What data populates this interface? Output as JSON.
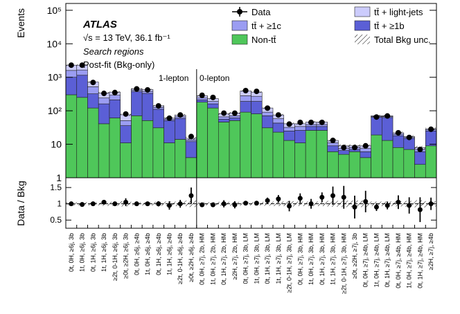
{
  "chart_data": {
    "type": "bar",
    "stacked": true,
    "log_scale": true,
    "ylabel": "Events",
    "ratio_ylabel": "Data / Bkg",
    "annotations": {
      "experiment": "ATLAS",
      "energy": "√s = 13 TeV, 36.1 fb⁻¹",
      "selection": "Search regions",
      "fit": "Post-fit (Bkg-only)",
      "region1": "1-lepton",
      "region2": "0-lepton"
    },
    "categories": [
      "0t, 0H, ≥6j, 3b",
      "1t, 0H, ≥6j, 3b",
      "0t, 1H, ≥6j, 3b",
      "1t, 1H, ≥6j, 3b",
      "≥2t, 0-1H, ≥6j, 3b",
      "≥0t, ≥2H, ≥6j, 3b",
      "0t, 0H, ≥6j, ≥4b",
      "1t, 0H, ≥6j, ≥4b",
      "0t, 1H, ≥6j, ≥4b",
      "1t, 1H, ≥6j, ≥4b",
      "≥2t, 0-1H, ≥6j, ≥4b",
      "≥0t, ≥2H, ≥6j, ≥4b",
      "0t, 0H, ≥7j, 2b, HM",
      "1t, 0H, ≥7j, 2b, HM",
      "0t, 1H, ≥7j, 2b, HM",
      "≥2H, ≥7j, 2b, HM",
      "0t, 0H, ≥7j, 3b, LM",
      "1t, 0H, ≥7j, 3b, LM",
      "0t, 1H, ≥7j, 3b, LM",
      "1t, 1H, ≥7j, 3b, LM",
      "≥2t, 0-1H, ≥7j, 3b, LM",
      "0t, 0H, ≥7j, 3b, HM",
      "1t, 0H, ≥7j, 3b, HM",
      "0t, 1H, ≥7j, 3b, HM",
      "1t, 1H, ≥7j, 3b, HM",
      "≥2t, 0-1H, ≥7j, 3b, HM",
      "≥0t, ≥2H, ≥7j, 3b",
      "0t, 0H, ≥7j, ≥4b, LM",
      "1t, 0H, ≥7j, ≥4b, LM",
      "0t, 1H, ≥7j, ≥4b, LM",
      "0t, 0H, ≥7j, ≥4b, HM",
      "1t, 0H, ≥7j, ≥4b, HM",
      "0t, 1H, ≥7j, ≥4b, HM",
      "≥2H, ≥7j, ≥4b"
    ],
    "series": [
      {
        "name": "Non-tt̄",
        "color": "#4fc75a",
        "values": [
          300,
          250,
          120,
          40,
          60,
          10,
          70,
          50,
          30,
          10,
          13,
          3,
          180,
          120,
          45,
          50,
          90,
          80,
          30,
          22,
          12,
          10,
          25,
          25,
          5,
          4,
          5,
          3,
          18,
          12,
          7,
          6,
          1.5,
          8
        ]
      },
      {
        "name": "tt̄ + ≥1b",
        "color": "#5b5fd6",
        "values": [
          700,
          900,
          200,
          120,
          150,
          25,
          300,
          280,
          80,
          40,
          45,
          8,
          30,
          40,
          10,
          10,
          100,
          110,
          40,
          20,
          12,
          15,
          8,
          8,
          3,
          1.5,
          1,
          2,
          45,
          50,
          10,
          8,
          3.5,
          16
        ]
      },
      {
        "name": "tt̄ + ≥1c",
        "color": "#9b9df2",
        "values": [
          600,
          500,
          200,
          80,
          80,
          15,
          40,
          50,
          15,
          5,
          7,
          1.5,
          30,
          30,
          10,
          10,
          90,
          80,
          20,
          15,
          7,
          8,
          5,
          5,
          2,
          1,
          1,
          1.5,
          4,
          4,
          2,
          1,
          1,
          2
        ]
      },
      {
        "name": "tt̄ + light-jets",
        "color": "#ccccfc",
        "values": [
          700,
          650,
          200,
          100,
          70,
          25,
          40,
          50,
          15,
          5,
          8,
          1.5,
          40,
          40,
          15,
          15,
          110,
          90,
          30,
          17,
          9,
          7,
          7,
          7,
          2,
          1.5,
          1,
          1.5,
          3,
          4,
          2,
          1,
          1,
          2
        ]
      }
    ],
    "data": {
      "name": "Data",
      "color": "#000000",
      "values": [
        2300,
        2300,
        700,
        330,
        350,
        80,
        450,
        420,
        140,
        60,
        75,
        17,
        290,
        250,
        85,
        85,
        400,
        380,
        120,
        75,
        40,
        45,
        45,
        45,
        13,
        8,
        8,
        9,
        65,
        70,
        22,
        16,
        7,
        28
      ],
      "ratio": [
        1.0,
        0.98,
        1.0,
        1.05,
        1.0,
        1.05,
        1.0,
        1.0,
        1.0,
        0.95,
        1.0,
        1.25,
        0.97,
        0.97,
        1.0,
        0.97,
        1.02,
        1.02,
        1.1,
        1.15,
        0.93,
        1.17,
        1.0,
        1.2,
        1.25,
        1.2,
        0.9,
        1.07,
        0.9,
        0.95,
        1.05,
        0.95,
        0.82,
        1.0
      ],
      "ratio_errors": [
        0.02,
        0.02,
        0.04,
        0.06,
        0.05,
        0.12,
        0.05,
        0.05,
        0.08,
        0.13,
        0.12,
        0.25,
        0.06,
        0.06,
        0.11,
        0.11,
        0.05,
        0.05,
        0.09,
        0.12,
        0.16,
        0.15,
        0.15,
        0.15,
        0.28,
        0.35,
        0.35,
        0.33,
        0.12,
        0.12,
        0.21,
        0.25,
        0.38,
        0.19
      ]
    },
    "uncertainty": {
      "name": "Total Bkg unc.",
      "values": [
        0.05,
        0.05,
        0.05,
        0.06,
        0.06,
        0.08,
        0.05,
        0.05,
        0.06,
        0.07,
        0.07,
        0.1,
        0.05,
        0.05,
        0.06,
        0.06,
        0.05,
        0.05,
        0.06,
        0.07,
        0.08,
        0.07,
        0.07,
        0.07,
        0.09,
        0.1,
        0.1,
        0.1,
        0.07,
        0.07,
        0.08,
        0.09,
        0.11,
        0.08
      ]
    },
    "ylim": [
      1,
      160000
    ],
    "yticks": [
      1,
      10,
      {
        "value": 100,
        "label": "10²"
      },
      {
        "value": 1000,
        "label": "10³"
      },
      {
        "value": 10000,
        "label": "10⁴"
      },
      {
        "value": 100000,
        "label": "10⁵"
      }
    ],
    "ratio_ylim": [
      0.25,
      1.8
    ],
    "ratio_yticks": [
      0.5,
      1,
      1.5
    ]
  }
}
